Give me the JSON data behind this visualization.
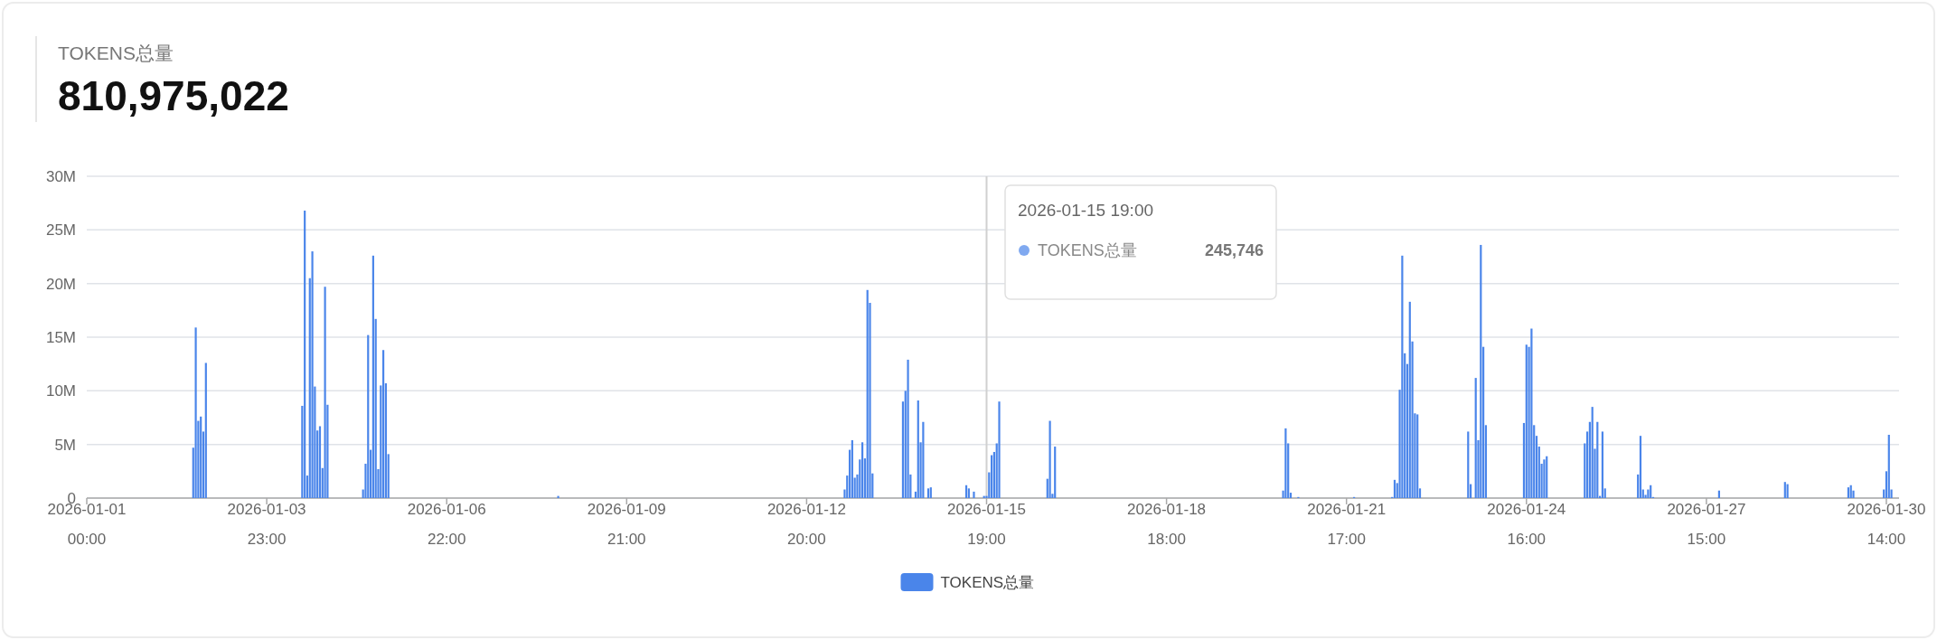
{
  "chart_data": {
    "type": "bar",
    "title": "TOKENS总量",
    "subtitle": "810,975,022",
    "series": [
      {
        "name": "TOKENS总量",
        "color": "#4a85ea",
        "x": [
          "2026-01-02T18:00",
          "2026-01-02T19:00",
          "2026-01-02T20:00",
          "2026-01-02T21:00",
          "2026-01-02T22:00",
          "2026-01-02T23:00",
          "2026-01-04T13:00",
          "2026-01-04T14:00",
          "2026-01-04T15:00",
          "2026-01-04T16:00",
          "2026-01-04T17:00",
          "2026-01-04T18:00",
          "2026-01-04T19:00",
          "2026-01-04T20:00",
          "2026-01-04T21:00",
          "2026-01-04T22:00",
          "2026-01-04T23:00",
          "2026-01-05T13:00",
          "2026-01-05T14:00",
          "2026-01-05T15:00",
          "2026-01-05T16:00",
          "2026-01-05T17:00",
          "2026-01-05T18:00",
          "2026-01-05T19:00",
          "2026-01-05T20:00",
          "2026-01-05T21:00",
          "2026-01-05T22:00",
          "2026-01-05T23:00",
          "2026-01-08T18:00",
          "2026-01-13T11:00",
          "2026-01-13T12:00",
          "2026-01-13T13:00",
          "2026-01-13T14:00",
          "2026-01-13T15:00",
          "2026-01-13T16:00",
          "2026-01-13T17:00",
          "2026-01-13T18:00",
          "2026-01-13T19:00",
          "2026-01-13T20:00",
          "2026-01-13T21:00",
          "2026-01-13T22:00",
          "2026-01-14T10:00",
          "2026-01-14T11:00",
          "2026-01-14T12:00",
          "2026-01-14T13:00",
          "2026-01-14T15:00",
          "2026-01-14T16:00",
          "2026-01-14T17:00",
          "2026-01-14T18:00",
          "2026-01-14T20:00",
          "2026-01-14T21:00",
          "2026-01-15T11:00",
          "2026-01-15T12:00",
          "2026-01-15T14:00",
          "2026-01-15T18:00",
          "2026-01-15T19:00",
          "2026-01-15T20:00",
          "2026-01-15T21:00",
          "2026-01-15T22:00",
          "2026-01-15T23:00",
          "2026-01-16T00:00",
          "2026-01-16T19:00",
          "2026-01-16T20:00",
          "2026-01-16T21:00",
          "2026-01-16T22:00",
          "2026-01-20T16:00",
          "2026-01-20T17:00",
          "2026-01-20T18:00",
          "2026-01-20T19:00",
          "2026-01-20T22:00",
          "2026-01-21T20:00",
          "2026-01-22T11:00",
          "2026-01-22T12:00",
          "2026-01-22T13:00",
          "2026-01-22T14:00",
          "2026-01-22T15:00",
          "2026-01-22T16:00",
          "2026-01-22T17:00",
          "2026-01-22T18:00",
          "2026-01-22T19:00",
          "2026-01-22T20:00",
          "2026-01-22T21:00",
          "2026-01-22T22:00",
          "2026-01-23T17:00",
          "2026-01-23T18:00",
          "2026-01-23T20:00",
          "2026-01-23T21:00",
          "2026-01-23T22:00",
          "2026-01-23T23:00",
          "2026-01-24T00:00",
          "2026-01-24T15:00",
          "2026-01-24T16:00",
          "2026-01-24T17:00",
          "2026-01-24T18:00",
          "2026-01-24T19:00",
          "2026-01-24T20:00",
          "2026-01-24T21:00",
          "2026-01-24T22:00",
          "2026-01-24T23:00",
          "2026-01-25T00:00",
          "2026-01-25T15:00",
          "2026-01-25T16:00",
          "2026-01-25T17:00",
          "2026-01-25T18:00",
          "2026-01-25T19:00",
          "2026-01-25T20:00",
          "2026-01-25T21:00",
          "2026-01-25T22:00",
          "2026-01-25T23:00",
          "2026-01-26T12:00",
          "2026-01-26T13:00",
          "2026-01-26T14:00",
          "2026-01-26T15:00",
          "2026-01-26T16:00",
          "2026-01-26T17:00",
          "2026-01-26T18:00",
          "2026-01-27T20:00",
          "2026-01-28T22:00",
          "2026-01-28T23:00",
          "2026-01-29T23:00",
          "2026-01-30T00:00",
          "2026-01-30T01:00",
          "2026-01-30T13:00",
          "2026-01-30T14:00",
          "2026-01-30T15:00",
          "2026-01-30T16:00"
        ],
        "values": [
          4.7,
          15.9,
          7.2,
          7.6,
          6.2,
          12.6,
          8.6,
          26.8,
          2.1,
          20.5,
          23.0,
          10.4,
          6.3,
          6.7,
          2.8,
          19.7,
          8.7,
          0.8,
          3.2,
          15.2,
          4.5,
          22.6,
          16.7,
          2.7,
          10.5,
          13.8,
          10.7,
          4.1,
          0.2,
          0.8,
          2.1,
          4.5,
          5.4,
          1.9,
          2.2,
          3.6,
          5.2,
          3.7,
          19.4,
          18.2,
          2.3,
          9.0,
          10.0,
          12.9,
          2.2,
          0.6,
          9.1,
          5.2,
          7.1,
          0.9,
          1.0,
          1.2,
          0.9,
          0.6,
          0.2,
          0.2,
          2.4,
          4.0,
          4.3,
          5.1,
          9.0,
          1.8,
          7.2,
          0.4,
          4.8,
          0.7,
          6.5,
          5.1,
          0.5,
          0.1,
          0.1,
          0.1,
          1.7,
          1.4,
          10.1,
          22.6,
          13.5,
          12.5,
          18.3,
          14.6,
          7.9,
          7.8,
          0.9,
          6.2,
          1.3,
          11.2,
          5.4,
          23.6,
          14.1,
          6.8,
          7.0,
          14.3,
          14.1,
          15.8,
          6.8,
          5.8,
          4.8,
          3.2,
          3.6,
          3.9,
          5.1,
          6.2,
          7.1,
          8.5,
          4.6,
          7.1,
          0.2,
          6.2,
          0.9,
          2.2,
          5.8,
          0.8,
          0.3,
          0.8,
          1.2,
          0.1,
          0.7,
          1.5,
          1.3,
          1.0,
          1.2,
          0.7,
          0.8,
          2.5,
          5.9,
          0.8
        ]
      }
    ],
    "xlim": [
      "2026-01-01T00:00",
      "2026-01-30T19:00"
    ],
    "xticks": [
      {
        "value": "2026-01-01T00:00",
        "label": "2026-01-01\n00:00"
      },
      {
        "value": "2026-01-03T23:00",
        "label": "2026-01-03\n23:00"
      },
      {
        "value": "2026-01-06T22:00",
        "label": "2026-01-06\n22:00"
      },
      {
        "value": "2026-01-09T21:00",
        "label": "2026-01-09\n21:00"
      },
      {
        "value": "2026-01-12T20:00",
        "label": "2026-01-12\n20:00"
      },
      {
        "value": "2026-01-15T19:00",
        "label": "2026-01-15\n19:00"
      },
      {
        "value": "2026-01-18T18:00",
        "label": "2026-01-18\n18:00"
      },
      {
        "value": "2026-01-21T17:00",
        "label": "2026-01-21\n17:00"
      },
      {
        "value": "2026-01-24T16:00",
        "label": "2026-01-24\n16:00"
      },
      {
        "value": "2026-01-27T15:00",
        "label": "2026-01-27\n15:00"
      },
      {
        "value": "2026-01-30T14:00",
        "label": "2026-01-30\n14:00"
      }
    ],
    "ylim": [
      0,
      30
    ],
    "yticks": [
      0,
      {
        "value": 5,
        "label": "5M"
      },
      {
        "value": 10,
        "label": "10M"
      },
      {
        "value": 15,
        "label": "15M"
      },
      {
        "value": 20,
        "label": "20M"
      },
      {
        "value": 25,
        "label": "25M"
      },
      {
        "value": 30,
        "label": "30M"
      }
    ],
    "grid": "y",
    "legend": "bottom",
    "ref_lines": [
      {
        "axis": "x",
        "value": "2026-01-15T19:00",
        "color": "#d0d0d0"
      }
    ],
    "annotations": [
      "2026-01-15 19:00",
      "TOKENS总量",
      "245,746"
    ]
  }
}
